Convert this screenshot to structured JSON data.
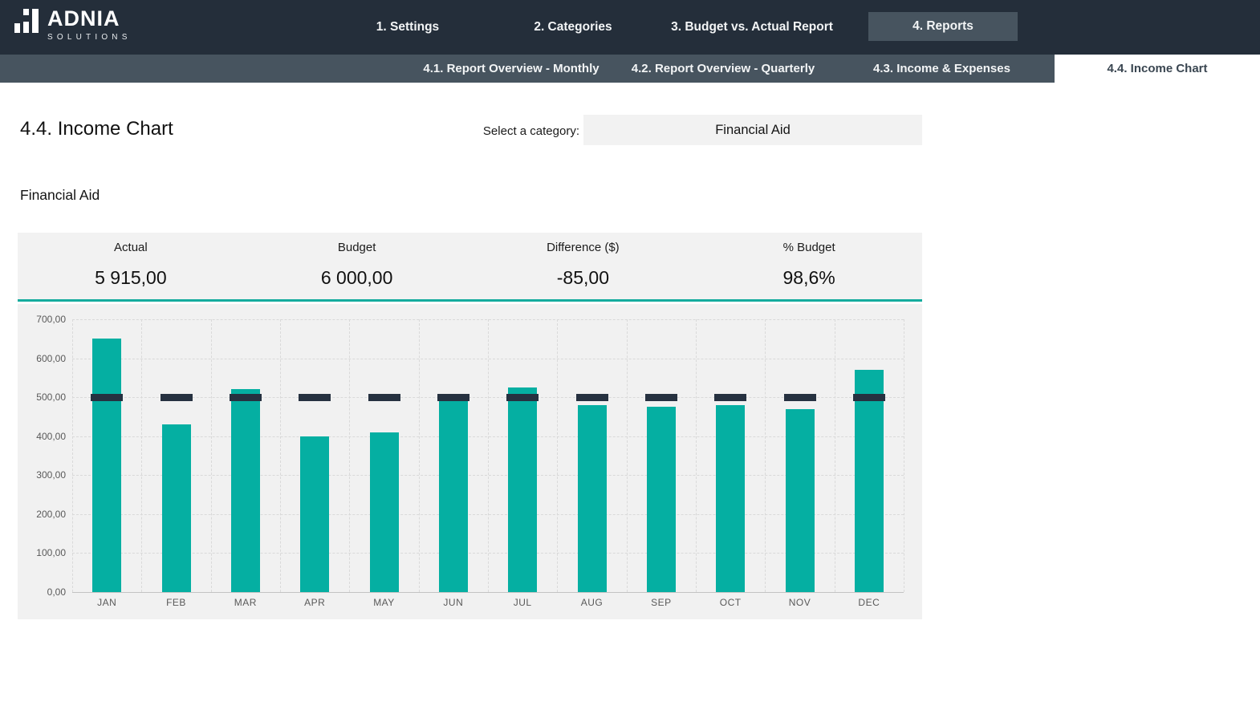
{
  "brand": {
    "name": "ADNIA",
    "subtitle": "SOLUTIONS"
  },
  "nav": {
    "items": [
      {
        "id": "settings",
        "label": "1. Settings",
        "active": false
      },
      {
        "id": "categories",
        "label": "2. Categories",
        "active": false
      },
      {
        "id": "budget-vs-actual-report",
        "label": "3. Budget vs. Actual Report",
        "active": false
      },
      {
        "id": "reports",
        "label": "4. Reports",
        "active": true
      }
    ]
  },
  "subnav": {
    "items": [
      {
        "id": "report-overview-monthly",
        "label": "4.1. Report Overview - Monthly",
        "active": false
      },
      {
        "id": "report-overview-quarterly",
        "label": "4.2. Report Overview - Quarterly",
        "active": false
      },
      {
        "id": "income-and-expenses",
        "label": "4.3. Income & Expenses",
        "active": false
      },
      {
        "id": "income-chart",
        "label": "4.4. Income Chart",
        "active": true
      }
    ]
  },
  "page": {
    "title": "4.4. Income Chart",
    "category_selector": {
      "label": "Select a category:",
      "value": "Financial Aid"
    },
    "section_title": "Financial Aid"
  },
  "summary": {
    "cells": [
      {
        "label": "Actual",
        "value": "5 915,00"
      },
      {
        "label": "Budget",
        "value": "6 000,00"
      },
      {
        "label": "Difference ($)",
        "value": "-85,00"
      },
      {
        "label": "% Budget",
        "value": "98,6%"
      }
    ]
  },
  "chart_data": {
    "type": "bar",
    "title": "Financial Aid",
    "categories": [
      "JAN",
      "FEB",
      "MAR",
      "APR",
      "MAY",
      "JUN",
      "JUL",
      "AUG",
      "SEP",
      "OCT",
      "NOV",
      "DEC"
    ],
    "series": [
      {
        "name": "Actual",
        "style": "column",
        "color": "#05AFA2",
        "values": [
          650,
          430,
          520,
          400,
          410,
          505,
          525,
          480,
          475,
          480,
          470,
          570
        ]
      },
      {
        "name": "Budget",
        "style": "dash-marker",
        "color": "#263140",
        "values": [
          500,
          500,
          500,
          500,
          500,
          500,
          500,
          500,
          500,
          500,
          500,
          500
        ]
      }
    ],
    "ylim": [
      0,
      700
    ],
    "ytick_step": 100,
    "ytick_labels": [
      "700,00",
      "600,00",
      "500,00",
      "400,00",
      "300,00",
      "200,00",
      "100,00",
      "0,00"
    ],
    "grid": true,
    "legend": "none"
  },
  "colors": {
    "topbar": "#242E3A",
    "subnav": "#47545F",
    "accent_teal": "#14AC9E",
    "bar_teal": "#05AFA2",
    "marker_navy": "#263140",
    "card_bg": "#F2F2F2",
    "chart_bg": "#F1F1F1",
    "gridline": "#D9D9D9",
    "axis_text": "#595959"
  }
}
